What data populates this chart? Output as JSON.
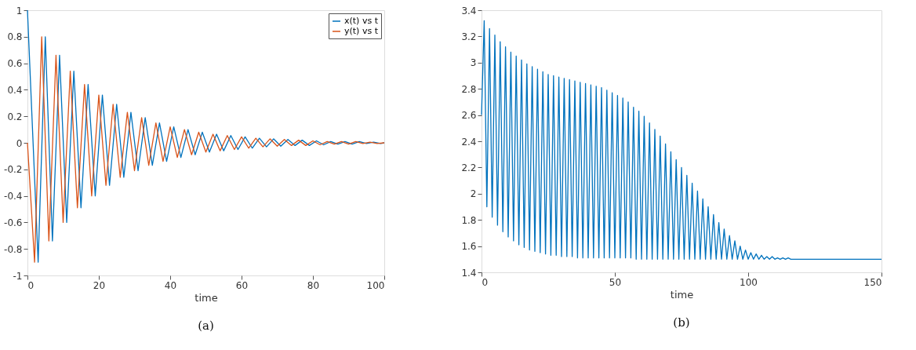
{
  "chart_data": [
    {
      "type": "line",
      "xlabel": "time",
      "xlim": [
        0,
        100
      ],
      "xticks": [
        0,
        20,
        40,
        60,
        80,
        100
      ],
      "ylim": [
        -1,
        1
      ],
      "yticks": [
        -1,
        -0.8,
        -0.6,
        -0.4,
        -0.2,
        0,
        0.2,
        0.4,
        0.6,
        0.8,
        1
      ],
      "legend": "top right",
      "grid": false,
      "line_style": "solid",
      "annotations": [
        "(a)"
      ],
      "series": [
        {
          "name": "x(t) vs t",
          "color": "#0072bd",
          "x": [
            0,
            3,
            5,
            7,
            9,
            11,
            13,
            15,
            17,
            19,
            21,
            23,
            25,
            27,
            29,
            31,
            33,
            35,
            37,
            39,
            41,
            43,
            45,
            47,
            49,
            51,
            53,
            55,
            57,
            59,
            61,
            63,
            65,
            67,
            69,
            71,
            73,
            75,
            77,
            79,
            81,
            83,
            85,
            87,
            89,
            91,
            93,
            95,
            97,
            99,
            100
          ],
          "values": [
            1,
            -0.9,
            0.8,
            -0.74,
            0.66,
            -0.6,
            0.54,
            -0.49,
            0.44,
            -0.4,
            0.36,
            -0.32,
            0.29,
            -0.26,
            0.23,
            -0.21,
            0.19,
            -0.17,
            0.15,
            -0.14,
            0.12,
            -0.11,
            0.1,
            -0.09,
            0.08,
            -0.07,
            0.065,
            -0.06,
            0.055,
            -0.05,
            0.045,
            -0.04,
            0.035,
            -0.03,
            0.03,
            -0.025,
            0.025,
            -0.02,
            0.02,
            -0.02,
            0.015,
            -0.015,
            0.01,
            -0.01,
            0.01,
            -0.01,
            0.01,
            -0.005,
            0.005,
            -0.005,
            0
          ]
        },
        {
          "name": "y(t) vs t",
          "color": "#d95319",
          "x": [
            0,
            2,
            4,
            6,
            8,
            10,
            12,
            14,
            16,
            18,
            20,
            22,
            24,
            26,
            28,
            30,
            32,
            34,
            36,
            38,
            40,
            42,
            44,
            46,
            48,
            50,
            52,
            54,
            56,
            58,
            60,
            62,
            64,
            66,
            68,
            70,
            72,
            74,
            76,
            78,
            80,
            82,
            84,
            86,
            88,
            90,
            92,
            94,
            96,
            98,
            100
          ],
          "values": [
            0,
            -0.9,
            0.8,
            -0.74,
            0.66,
            -0.6,
            0.54,
            -0.49,
            0.44,
            -0.4,
            0.36,
            -0.32,
            0.29,
            -0.26,
            0.23,
            -0.21,
            0.19,
            -0.17,
            0.15,
            -0.14,
            0.12,
            -0.11,
            0.1,
            -0.09,
            0.08,
            -0.07,
            0.065,
            -0.06,
            0.055,
            -0.05,
            0.045,
            -0.04,
            0.035,
            -0.03,
            0.03,
            -0.025,
            0.025,
            -0.02,
            0.02,
            -0.02,
            0.015,
            -0.015,
            0.01,
            -0.01,
            0.01,
            -0.01,
            0.01,
            -0.005,
            0.005,
            -0.005,
            0
          ]
        }
      ]
    },
    {
      "type": "line",
      "xlabel": "time",
      "xlim": [
        0,
        150
      ],
      "xticks": [
        0,
        50,
        100,
        150
      ],
      "ylim": [
        1.4,
        3.4
      ],
      "yticks": [
        1.4,
        1.6,
        1.8,
        2,
        2.2,
        2.4,
        2.6,
        2.8,
        3,
        3.2,
        3.4
      ],
      "grid": false,
      "line_style": "solid",
      "annotations": [
        "(b)"
      ],
      "series": [
        {
          "color": "#0072bd",
          "x": [
            0,
            1,
            2,
            3,
            4,
            5,
            6,
            7,
            8,
            9,
            10,
            11,
            12,
            13,
            14,
            15,
            16,
            17,
            18,
            19,
            20,
            21,
            22,
            23,
            24,
            25,
            26,
            27,
            28,
            29,
            30,
            31,
            32,
            33,
            34,
            35,
            36,
            37,
            38,
            39,
            40,
            41,
            42,
            43,
            44,
            45,
            46,
            47,
            48,
            49,
            50,
            51,
            52,
            53,
            54,
            55,
            56,
            57,
            58,
            59,
            60,
            61,
            62,
            63,
            64,
            65,
            66,
            67,
            68,
            69,
            70,
            71,
            72,
            73,
            74,
            75,
            76,
            77,
            78,
            79,
            80,
            81,
            82,
            83,
            84,
            85,
            86,
            87,
            88,
            89,
            90,
            91,
            92,
            93,
            94,
            95,
            96,
            97,
            98,
            99,
            100,
            101,
            102,
            103,
            104,
            105,
            106,
            107,
            108,
            109,
            110,
            111,
            112,
            113,
            114,
            115,
            116,
            117,
            118,
            119,
            120,
            150
          ],
          "values": [
            2.6,
            3.32,
            1.9,
            3.26,
            1.82,
            3.21,
            1.76,
            3.16,
            1.71,
            3.12,
            1.67,
            3.08,
            1.64,
            3.05,
            1.61,
            3.02,
            1.59,
            2.99,
            1.57,
            2.97,
            1.56,
            2.95,
            1.55,
            2.93,
            1.54,
            2.91,
            1.53,
            2.9,
            1.53,
            2.89,
            1.52,
            2.88,
            1.52,
            2.87,
            1.52,
            2.86,
            1.51,
            2.85,
            1.51,
            2.84,
            1.51,
            2.83,
            1.51,
            2.82,
            1.51,
            2.81,
            1.51,
            2.79,
            1.51,
            2.77,
            1.51,
            2.75,
            1.51,
            2.73,
            1.51,
            2.7,
            1.51,
            2.66,
            1.5,
            2.63,
            1.5,
            2.59,
            1.5,
            2.54,
            1.5,
            2.49,
            1.5,
            2.44,
            1.5,
            2.38,
            1.5,
            2.32,
            1.5,
            2.26,
            1.5,
            2.2,
            1.5,
            2.14,
            1.5,
            2.08,
            1.5,
            2.02,
            1.5,
            1.96,
            1.5,
            1.9,
            1.5,
            1.84,
            1.5,
            1.78,
            1.5,
            1.73,
            1.5,
            1.68,
            1.5,
            1.64,
            1.5,
            1.6,
            1.5,
            1.57,
            1.5,
            1.55,
            1.5,
            1.54,
            1.5,
            1.53,
            1.5,
            1.52,
            1.5,
            1.52,
            1.5,
            1.51,
            1.5,
            1.51,
            1.5,
            1.51,
            1.5,
            1.5,
            1.5,
            1.5,
            1.5,
            1.5
          ]
        }
      ]
    }
  ]
}
